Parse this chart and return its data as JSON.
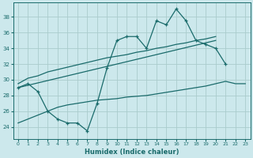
{
  "xlabel": "Humidex (Indice chaleur)",
  "background_color": "#cce8ec",
  "grid_color": "#aacccc",
  "line_color": "#1a6b6b",
  "x_ticks": [
    0,
    1,
    2,
    3,
    4,
    5,
    6,
    7,
    8,
    9,
    10,
    11,
    12,
    13,
    14,
    15,
    16,
    17,
    18,
    19,
    20,
    21,
    22,
    23
  ],
  "y_ticks": [
    24,
    26,
    28,
    30,
    32,
    34,
    36,
    38
  ],
  "ylim": [
    22.5,
    39.8
  ],
  "xlim": [
    -0.5,
    23.5
  ],
  "line1_y": [
    29.0,
    29.5,
    28.5,
    26.0,
    25.0,
    24.5,
    24.5,
    23.5,
    27.0,
    31.5,
    35.0,
    35.5,
    35.5,
    34.0,
    37.5,
    37.0,
    39.0,
    37.5,
    35.0,
    34.5,
    34.0,
    32.0,
    null,
    null
  ],
  "line2_y": [
    29.5,
    30.2,
    30.5,
    31.0,
    31.3,
    31.6,
    31.9,
    32.2,
    32.5,
    32.8,
    33.0,
    33.2,
    33.5,
    33.7,
    34.0,
    34.2,
    34.5,
    34.7,
    35.0,
    35.2,
    35.5,
    null,
    null,
    null
  ],
  "line3_y": [
    29.0,
    29.3,
    29.6,
    29.9,
    30.2,
    30.5,
    30.8,
    31.1,
    31.4,
    31.7,
    32.0,
    32.3,
    32.6,
    32.9,
    33.2,
    33.5,
    33.8,
    34.1,
    34.4,
    34.7,
    35.0,
    null,
    null,
    null
  ],
  "line4_y": [
    24.5,
    25.0,
    25.5,
    26.0,
    26.5,
    26.8,
    27.0,
    27.2,
    27.4,
    27.5,
    27.6,
    27.8,
    27.9,
    28.0,
    28.2,
    28.4,
    28.6,
    28.8,
    29.0,
    29.2,
    29.5,
    29.8,
    29.5,
    29.5
  ]
}
